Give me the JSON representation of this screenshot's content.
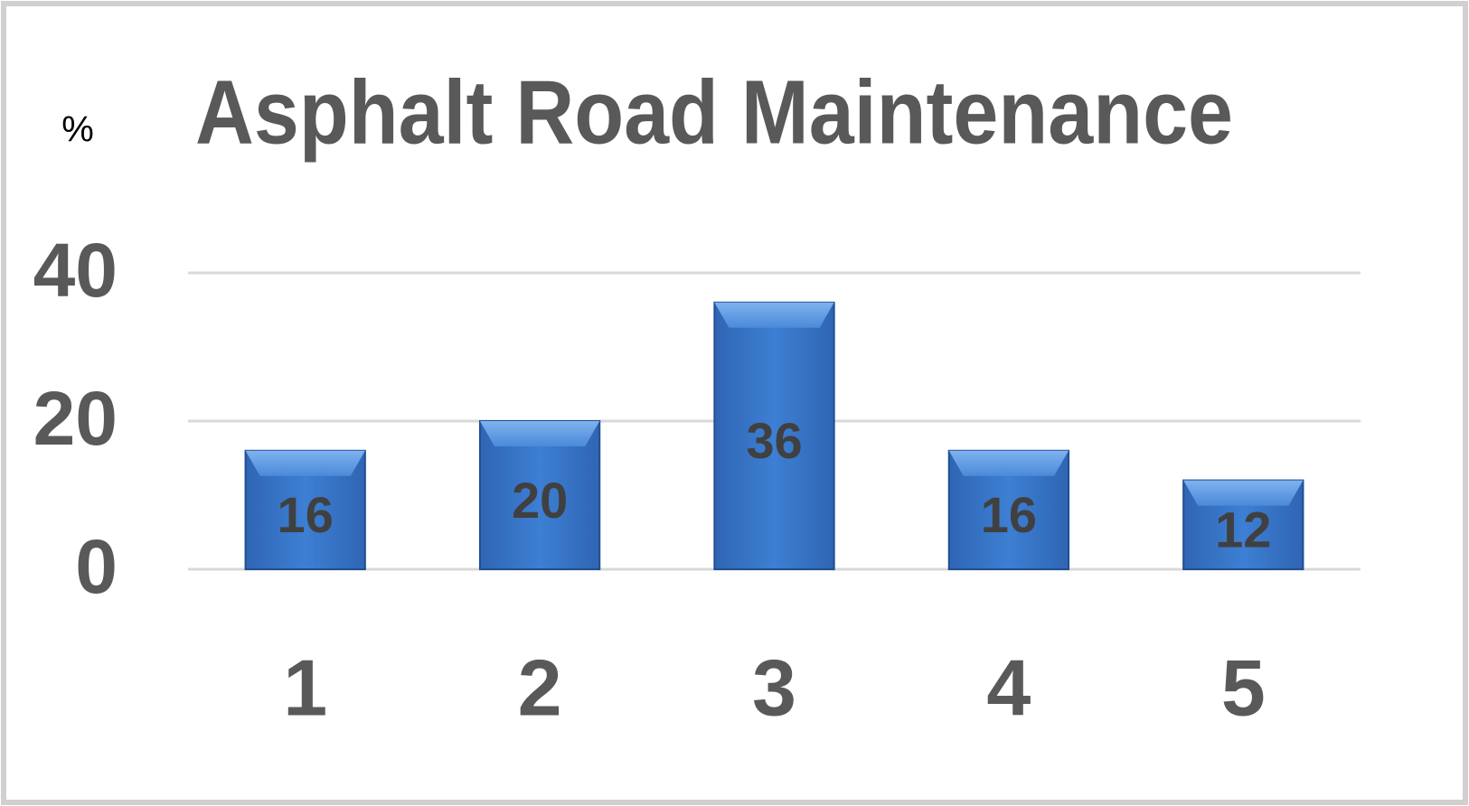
{
  "chart_data": {
    "type": "bar",
    "title": "Asphalt Road Maintenance",
    "y_label": "%",
    "categories": [
      "1",
      "2",
      "3",
      "4",
      "5"
    ],
    "values": [
      16,
      20,
      36,
      16,
      12
    ],
    "color": "#3b78c9",
    "ylim": [
      0,
      40
    ],
    "yticks": [
      0,
      20,
      40
    ],
    "grid": true
  }
}
